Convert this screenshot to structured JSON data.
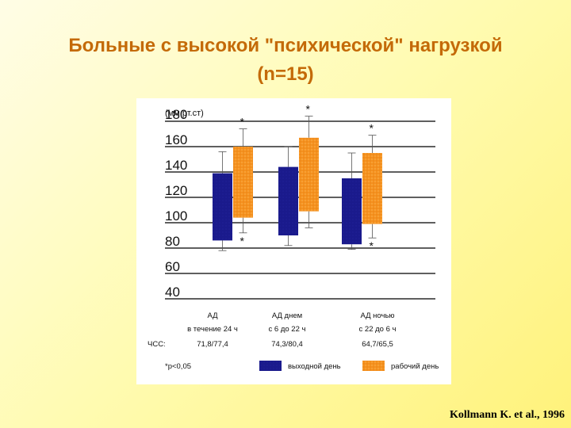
{
  "slide": {
    "title_line1": "Больные с высокой \"психической\" нагрузкой",
    "title_line2": "(n=15)",
    "citation": "Kollmann K. et al., 1996"
  },
  "chart_data": {
    "type": "bar",
    "subtype": "floating-range-with-whiskers",
    "ylabel": "(мм рт.ст)",
    "yticks": [
      180,
      160,
      140,
      120,
      100,
      80,
      60,
      40
    ],
    "ylim": [
      40,
      190
    ],
    "grid": true,
    "categories": [
      {
        "line1": "АД",
        "line2": "в течение 24 ч",
        "hr": "71,8/77,4"
      },
      {
        "line1": "АД днем",
        "line2": "с 6 до 22 ч",
        "hr": "74,3/80,4"
      },
      {
        "line1": "АД ночью",
        "line2": "с 22 до 6 ч",
        "hr": "64,7/65,5"
      }
    ],
    "hr_label": "ЧСС:",
    "series": [
      {
        "name": "выходной день",
        "color": "#1a1a8c",
        "low": [
          86,
          90,
          83
        ],
        "high": [
          139,
          144,
          135
        ],
        "whisker_low": [
          78,
          82,
          79
        ],
        "whisker_high": [
          156,
          160,
          155
        ]
      },
      {
        "name": "рабочий день",
        "color": "#f5921e",
        "low": [
          104,
          109,
          99
        ],
        "high": [
          160,
          167,
          155
        ],
        "whisker_low": [
          92,
          96,
          88
        ],
        "whisker_high": [
          174,
          184,
          169
        ]
      }
    ],
    "significance": {
      "top": [
        true,
        true,
        true
      ],
      "bottom": [
        true,
        false,
        true
      ],
      "marker": "*"
    },
    "footnote": "*p<0,05",
    "legend_position": "bottom"
  }
}
